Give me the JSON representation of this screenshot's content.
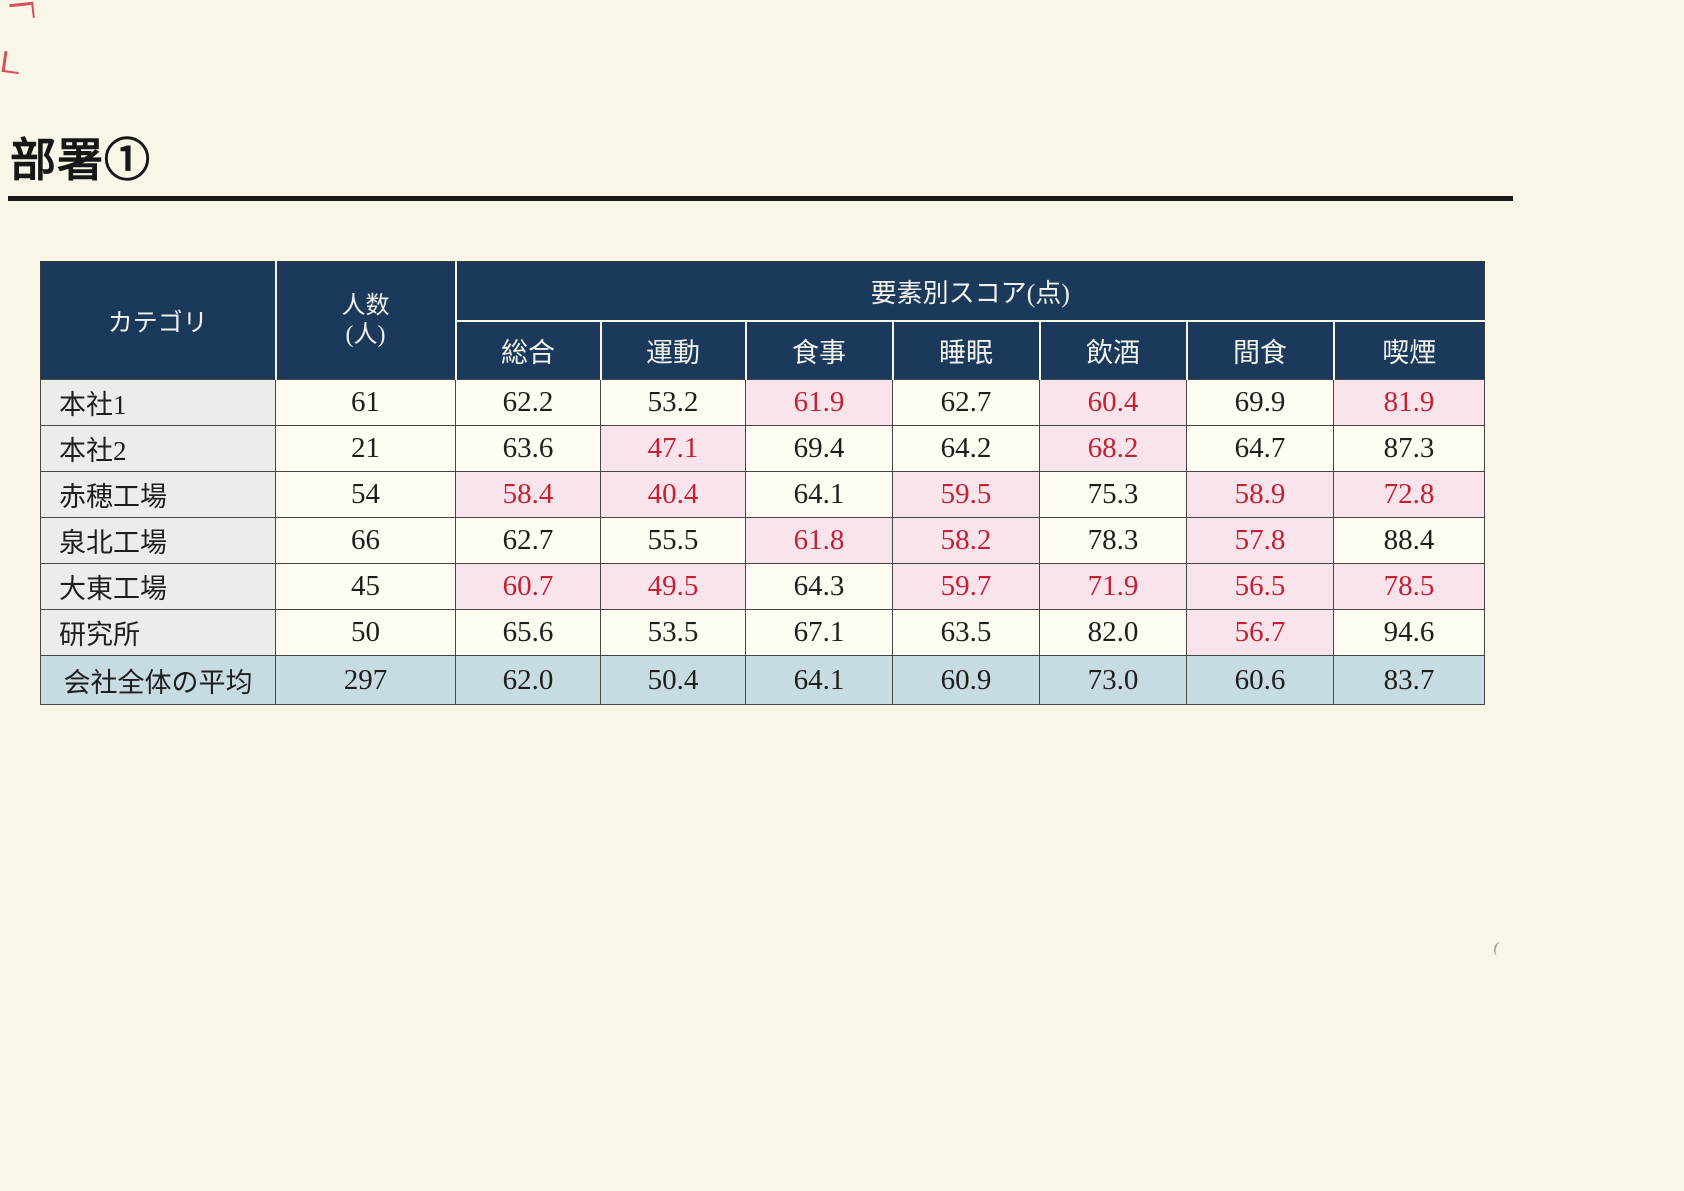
{
  "page": {
    "title": "部署①"
  },
  "table": {
    "header": {
      "category_label": "カテゴリ",
      "count_label_line1": "人数",
      "count_label_line2": "(人)",
      "score_group_label": "要素別スコア(点)",
      "score_columns": [
        "総合",
        "運動",
        "食事",
        "睡眠",
        "飲酒",
        "間食",
        "喫煙"
      ]
    },
    "rows": [
      {
        "category": "本社1",
        "count": "61",
        "scores": [
          {
            "value": "62.2",
            "low": false
          },
          {
            "value": "53.2",
            "low": false
          },
          {
            "value": "61.9",
            "low": true
          },
          {
            "value": "62.7",
            "low": false
          },
          {
            "value": "60.4",
            "low": true
          },
          {
            "value": "69.9",
            "low": false
          },
          {
            "value": "81.9",
            "low": true
          }
        ]
      },
      {
        "category": "本社2",
        "count": "21",
        "scores": [
          {
            "value": "63.6",
            "low": false
          },
          {
            "value": "47.1",
            "low": true
          },
          {
            "value": "69.4",
            "low": false
          },
          {
            "value": "64.2",
            "low": false
          },
          {
            "value": "68.2",
            "low": true
          },
          {
            "value": "64.7",
            "low": false
          },
          {
            "value": "87.3",
            "low": false
          }
        ]
      },
      {
        "category": "赤穂工場",
        "count": "54",
        "scores": [
          {
            "value": "58.4",
            "low": true
          },
          {
            "value": "40.4",
            "low": true
          },
          {
            "value": "64.1",
            "low": false
          },
          {
            "value": "59.5",
            "low": true
          },
          {
            "value": "75.3",
            "low": false
          },
          {
            "value": "58.9",
            "low": true
          },
          {
            "value": "72.8",
            "low": true
          }
        ]
      },
      {
        "category": "泉北工場",
        "count": "66",
        "scores": [
          {
            "value": "62.7",
            "low": false
          },
          {
            "value": "55.5",
            "low": false
          },
          {
            "value": "61.8",
            "low": true
          },
          {
            "value": "58.2",
            "low": true
          },
          {
            "value": "78.3",
            "low": false
          },
          {
            "value": "57.8",
            "low": true
          },
          {
            "value": "88.4",
            "low": false
          }
        ]
      },
      {
        "category": "大東工場",
        "count": "45",
        "scores": [
          {
            "value": "60.7",
            "low": true
          },
          {
            "value": "49.5",
            "low": true
          },
          {
            "value": "64.3",
            "low": false
          },
          {
            "value": "59.7",
            "low": true
          },
          {
            "value": "71.9",
            "low": true
          },
          {
            "value": "56.5",
            "low": true
          },
          {
            "value": "78.5",
            "low": true
          }
        ]
      },
      {
        "category": "研究所",
        "count": "50",
        "scores": [
          {
            "value": "65.6",
            "low": false
          },
          {
            "value": "53.5",
            "low": false
          },
          {
            "value": "67.1",
            "low": false
          },
          {
            "value": "63.5",
            "low": false
          },
          {
            "value": "82.0",
            "low": false
          },
          {
            "value": "56.7",
            "low": true
          },
          {
            "value": "94.6",
            "low": false
          }
        ]
      }
    ],
    "average_row": {
      "category": "会社全体の平均",
      "count": "297",
      "scores": [
        {
          "value": "62.0",
          "low": false
        },
        {
          "value": "50.4",
          "low": false
        },
        {
          "value": "64.1",
          "low": false
        },
        {
          "value": "60.9",
          "low": false
        },
        {
          "value": "73.0",
          "low": false
        },
        {
          "value": "60.6",
          "low": false
        },
        {
          "value": "83.7",
          "low": false
        }
      ]
    }
  },
  "colors": {
    "paper": "#f9f6e8",
    "header_bg": "#1b3a5b",
    "header_text": "#f1f1ec",
    "cell_bg": "#fdfbf2",
    "category_bg": "#e9efe8",
    "low_bg": "#f8e4ea",
    "low_text": "#c32236",
    "average_bg": "#c7dbe2",
    "border": "#474747",
    "title_text": "#171717"
  }
}
